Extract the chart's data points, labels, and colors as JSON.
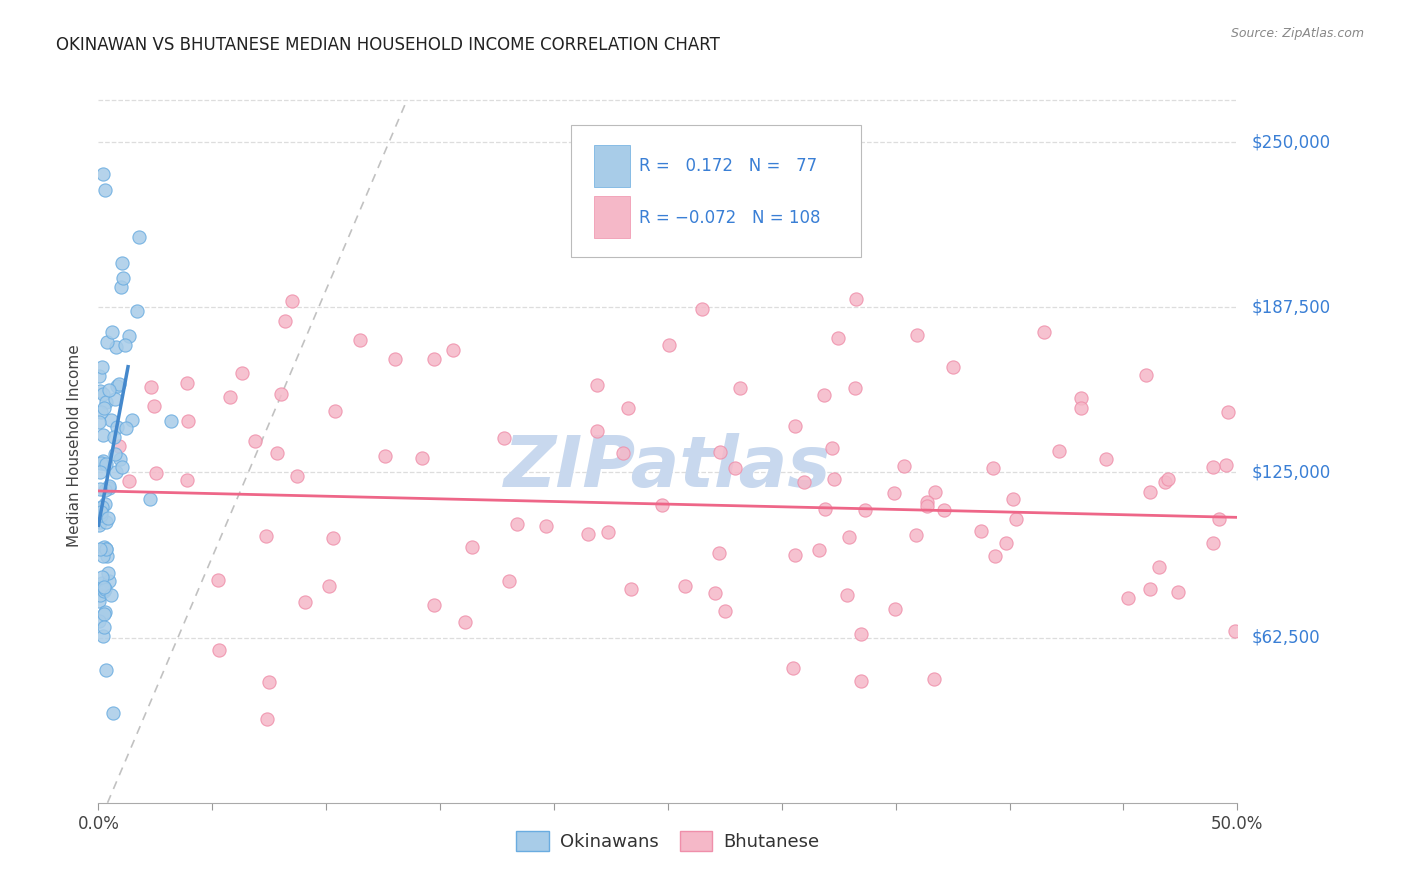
{
  "title": "OKINAWAN VS BHUTANESE MEDIAN HOUSEHOLD INCOME CORRELATION CHART",
  "source": "Source: ZipAtlas.com",
  "ylabel": "Median Household Income",
  "ytick_labels": [
    "$62,500",
    "$125,000",
    "$187,500",
    "$250,000"
  ],
  "ytick_values": [
    62500,
    125000,
    187500,
    250000
  ],
  "ymin": 0,
  "ymax": 270000,
  "xmin": 0.0,
  "xmax": 0.5,
  "legend_text_color": "#3a7fd5",
  "color_okinawan": "#a8cce8",
  "color_bhutanese": "#f5b8c8",
  "color_okinawan_edge": "#6aace0",
  "color_bhutanese_edge": "#ef8faa",
  "color_okinawan_line": "#4488cc",
  "color_bhutanese_line": "#ee6688",
  "color_diagonal": "#bbbbbb",
  "watermark": "ZIPatlas",
  "watermark_color": "#c8d8ee"
}
